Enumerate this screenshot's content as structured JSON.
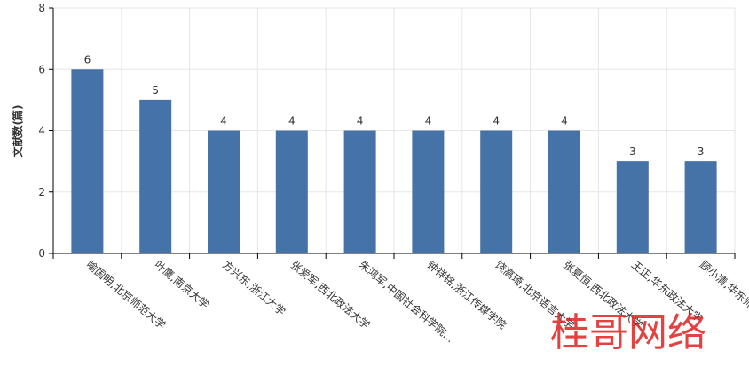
{
  "chart_data": {
    "type": "bar",
    "y_label": "文献数(篇)",
    "categories": [
      "喻国明,北京师范大学",
      "叶鹰,南京大学",
      "方兴东,浙江大学",
      "张爱军,西北政法大学",
      "朱鸿军,中国社会科学院...",
      "钟祥铭,浙江传媒学院",
      "饶高琦,北京语言大学",
      "张夏恒,西北政法大学",
      "王正,华东政法大学",
      "顾小清,华东师范大学"
    ],
    "values": [
      6,
      5,
      4,
      4,
      4,
      4,
      4,
      4,
      3,
      3
    ],
    "color": "#4572a7",
    "ylim": [
      0,
      8
    ],
    "yticks": [
      0,
      2,
      4,
      6,
      8
    ],
    "grid": true,
    "watermark": "桂哥网络"
  }
}
